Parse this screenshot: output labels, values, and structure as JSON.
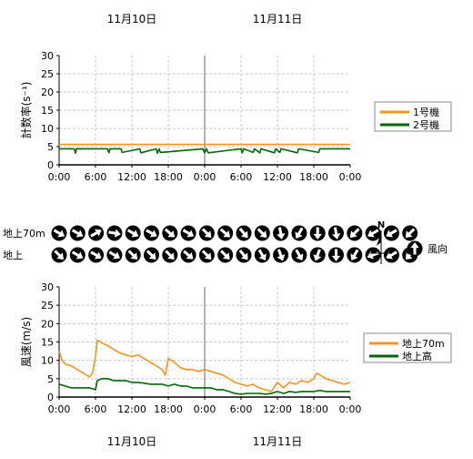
{
  "date_labels": [
    "11月10日",
    "11月11日"
  ],
  "chart_data": [
    {
      "type": "line",
      "title": "",
      "ylabel": "計数率(s⁻¹)",
      "ylim": [
        0,
        30
      ],
      "yticks": [
        0,
        5,
        10,
        15,
        20,
        25,
        30
      ],
      "xlim": [
        0,
        48
      ],
      "xticks": [
        0,
        6,
        12,
        18,
        24,
        30,
        36,
        42,
        48
      ],
      "xtick_labels": [
        "0:00",
        "6:00",
        "12:00",
        "18:00",
        "0:00",
        "6:00",
        "12:00",
        "18:00",
        "0:00"
      ],
      "day_divider_hour": 24,
      "grid": true,
      "legend_position": "right",
      "series": [
        {
          "name": "1号機",
          "color": "#f7941d",
          "x": [
            0,
            48
          ],
          "y": [
            5.6,
            5.6
          ]
        },
        {
          "name": "2号機",
          "color": "#006600",
          "x": [
            0,
            2.5,
            2.7,
            2.9,
            3.1,
            8.0,
            8.2,
            8.4,
            10.2,
            10.4,
            13.3,
            13.5,
            16.0,
            16.2,
            16.5,
            16.7,
            23.7,
            24.0,
            24.3,
            24.6,
            30.0,
            30.2,
            30.4,
            32.0,
            32.2,
            33.1,
            33.3,
            35.5,
            35.7,
            36.4,
            36.6,
            39.3,
            39.5,
            42.8,
            43.0,
            48
          ],
          "y": [
            4.4,
            4.4,
            3.2,
            4.5,
            4.4,
            4.4,
            3.3,
            4.4,
            4.4,
            3.4,
            4.4,
            3.3,
            4.4,
            3.2,
            4.4,
            3.4,
            4.4,
            3.3,
            4.4,
            3.3,
            4.4,
            3.3,
            4.4,
            3.4,
            4.4,
            3.3,
            4.4,
            3.3,
            4.4,
            3.4,
            4.4,
            3.3,
            4.4,
            3.4,
            4.4,
            4.4
          ]
        }
      ]
    },
    {
      "type": "table",
      "row_labels": [
        "地上70m",
        "地上"
      ],
      "wind_direction_deg": [
        [
          120,
          120,
          60,
          100,
          120,
          120,
          130,
          120,
          135,
          130,
          140,
          135,
          170,
          210,
          180,
          170,
          225,
          240,
          240,
          225
        ],
        [
          135,
          120,
          120,
          120,
          135,
          135,
          135,
          130,
          135,
          135,
          140,
          150,
          160,
          150,
          200,
          180,
          210,
          250,
          240,
          225
        ]
      ],
      "north_label": "N",
      "legend_label": "風向",
      "legend_arrow_deg": 0
    },
    {
      "type": "line",
      "title": "",
      "ylabel": "風速(m/s)",
      "ylim": [
        0,
        30
      ],
      "yticks": [
        0,
        5,
        10,
        15,
        20,
        25,
        30
      ],
      "xlim": [
        0,
        48
      ],
      "xticks": [
        0,
        6,
        12,
        18,
        24,
        30,
        36,
        42,
        48
      ],
      "xtick_labels": [
        "0:00",
        "6:00",
        "12:00",
        "18:00",
        "0:00",
        "6:00",
        "12:00",
        "18:00",
        "0:00"
      ],
      "day_divider_hour": 24,
      "grid": true,
      "legend_position": "right",
      "series": [
        {
          "name": "地上70m",
          "color": "#f7941d",
          "x": [
            0,
            0.5,
            1,
            2,
            3,
            4,
            5,
            5.5,
            6,
            6.3,
            7,
            8,
            9,
            10,
            11,
            12,
            13,
            14,
            15,
            16,
            17,
            17.5,
            18,
            19,
            20,
            21,
            22,
            23,
            24,
            25,
            26,
            27,
            28,
            29,
            30,
            31,
            32,
            33,
            34,
            35,
            36,
            37,
            38,
            39,
            40,
            41,
            42,
            42.5,
            43,
            44,
            45,
            46,
            47,
            48
          ],
          "y": [
            12.5,
            10,
            9,
            8.5,
            7.5,
            6.5,
            5.5,
            6.5,
            11,
            15.5,
            14.8,
            14,
            13,
            12,
            11.5,
            11,
            11.5,
            10.5,
            9.5,
            8.5,
            7.5,
            6,
            10.5,
            9.5,
            8,
            7.5,
            7.5,
            7,
            7.5,
            7,
            6.5,
            6,
            5,
            4,
            3.5,
            3,
            3.5,
            2.5,
            2,
            1.5,
            4,
            2.5,
            4,
            3.5,
            4.5,
            4,
            5,
            6.5,
            6,
            5,
            4.5,
            4,
            3.5,
            4
          ]
        },
        {
          "name": "地上高",
          "color": "#006600",
          "x": [
            0,
            1,
            2,
            3,
            4,
            5,
            6,
            6.3,
            7,
            8,
            9,
            10,
            11,
            12,
            13,
            14,
            15,
            16,
            17,
            18,
            19,
            20,
            21,
            22,
            23,
            24,
            25,
            26,
            27,
            28,
            29,
            30,
            31,
            32,
            33,
            34,
            35,
            36,
            37,
            38,
            39,
            40,
            41,
            42,
            43,
            44,
            45,
            46,
            47,
            48
          ],
          "y": [
            3.5,
            3,
            2.5,
            2.5,
            2.5,
            2.5,
            2,
            4.5,
            5,
            5,
            4.5,
            4.5,
            4.5,
            4,
            4,
            3.8,
            3.5,
            3.5,
            3.5,
            3,
            3.5,
            3,
            3,
            2.5,
            2.5,
            2.5,
            2.5,
            2,
            2,
            1.5,
            1,
            0.8,
            1,
            1,
            1,
            0.8,
            1,
            1.5,
            1,
            1.5,
            1.3,
            1.5,
            1.5,
            1.5,
            1.8,
            1.5,
            1.5,
            1.5,
            1.5,
            1.5
          ]
        }
      ]
    }
  ]
}
